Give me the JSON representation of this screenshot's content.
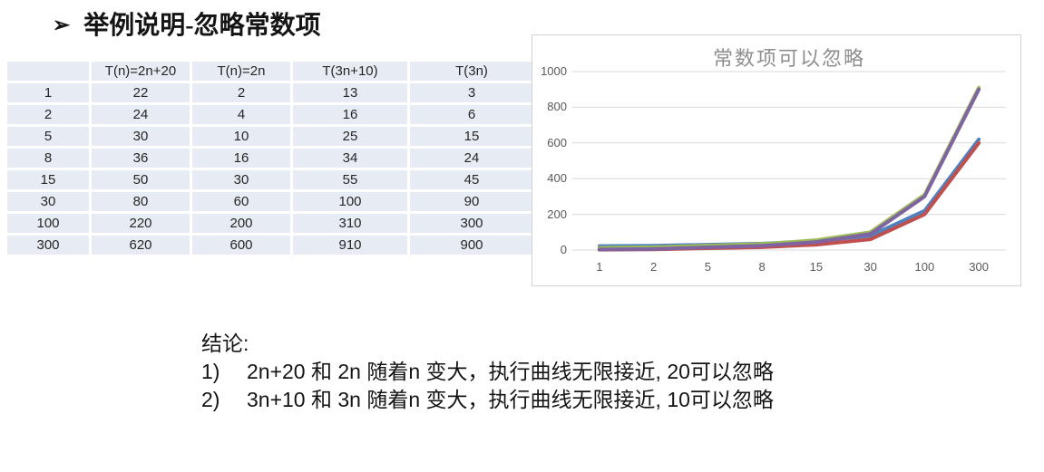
{
  "page": {
    "bullet": "➢",
    "title": "举例说明-忽略常数项"
  },
  "table": {
    "headers": [
      "",
      "T(n)=2n+20",
      "T(n)=2n",
      "T(3n+10)",
      "T(3n)"
    ],
    "rows": [
      [
        "1",
        "22",
        "2",
        "13",
        "3"
      ],
      [
        "2",
        "24",
        "4",
        "16",
        "6"
      ],
      [
        "5",
        "30",
        "10",
        "25",
        "15"
      ],
      [
        "8",
        "36",
        "16",
        "34",
        "24"
      ],
      [
        "15",
        "50",
        "30",
        "55",
        "45"
      ],
      [
        "30",
        "80",
        "60",
        "100",
        "90"
      ],
      [
        "100",
        "220",
        "200",
        "310",
        "300"
      ],
      [
        "300",
        "620",
        "600",
        "910",
        "900"
      ]
    ]
  },
  "chart_data": {
    "type": "line",
    "title": "常数项可以忽略",
    "categories": [
      "1",
      "2",
      "5",
      "8",
      "15",
      "30",
      "100",
      "300"
    ],
    "series": [
      {
        "name": "T(n)=2n+20",
        "color": "#4F81BD",
        "values": [
          22,
          24,
          30,
          36,
          50,
          80,
          220,
          620
        ]
      },
      {
        "name": "T(n)=2n",
        "color": "#C0504D",
        "values": [
          2,
          4,
          10,
          16,
          30,
          60,
          200,
          600
        ]
      },
      {
        "name": "T(3n+10)",
        "color": "#9BBB59",
        "values": [
          13,
          16,
          25,
          34,
          55,
          100,
          310,
          910
        ]
      },
      {
        "name": "T(3n)",
        "color": "#8064A2",
        "values": [
          3,
          6,
          15,
          24,
          45,
          90,
          300,
          900
        ]
      }
    ],
    "xlabel": "",
    "ylabel": "",
    "ylim": [
      0,
      1000
    ],
    "yticks": [
      0,
      200,
      400,
      600,
      800,
      1000
    ],
    "grid": true,
    "legend": "none",
    "title_color": "#8E8E8E",
    "axis_label_color": "#595959",
    "gridline_color": "#D9D9D9",
    "border_color": "#D2D2D2"
  },
  "conclusion": {
    "heading": "结论:",
    "items": [
      {
        "num": "1)",
        "text": "2n+20 和 2n 随着n 变大，执行曲线无限接近, 20可以忽略"
      },
      {
        "num": "2)",
        "text": "3n+10 和 3n 随着n 变大，执行曲线无限接近, 10可以忽略"
      }
    ]
  }
}
